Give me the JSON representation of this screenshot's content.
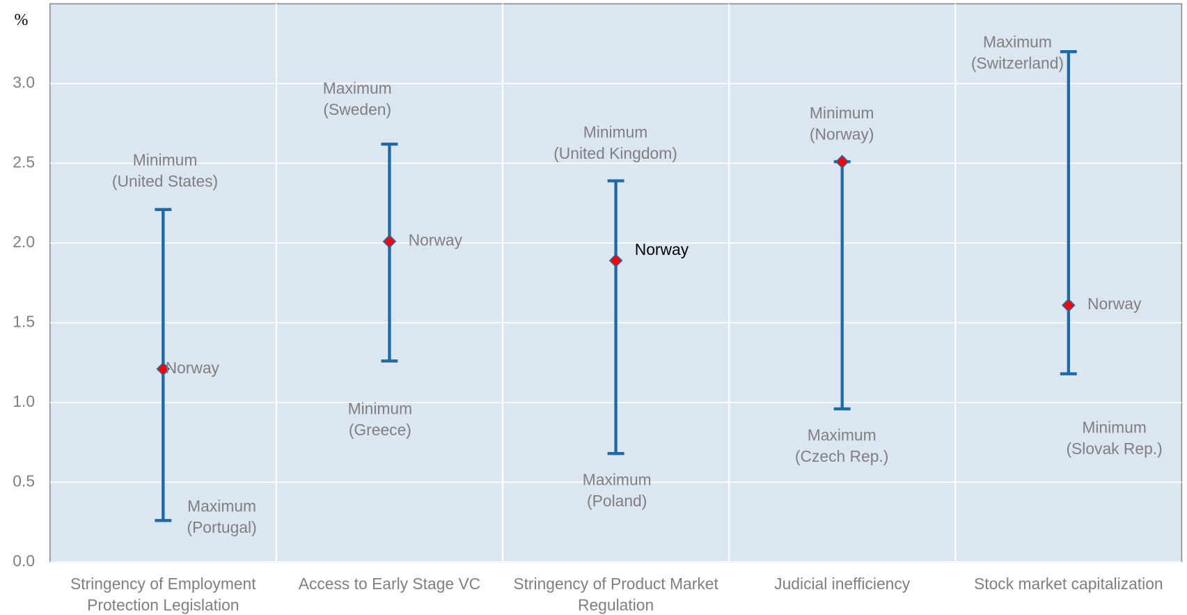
{
  "chart_data": {
    "type": "range",
    "y_label": "%",
    "categories": [
      "Stringency of Employment Protection Legislation",
      "Access to Early Stage VC",
      "Stringency of Product Market Regulation",
      "Judicial inefficiency",
      "Stock market capitalization"
    ],
    "ranges": {
      "color": "#1f6aa5",
      "high": [
        2.21,
        2.62,
        2.39,
        2.51,
        3.2
      ],
      "low": [
        0.26,
        1.26,
        0.68,
        0.96,
        1.18
      ]
    },
    "series": [
      {
        "name": "Norway",
        "color": "#ff0000",
        "values": [
          1.21,
          2.01,
          1.89,
          2.51,
          1.61
        ]
      }
    ],
    "point_labels": [
      "Norway",
      "Norway",
      "Norway",
      null,
      "Norway"
    ],
    "top_labels": [
      [
        "Minimum",
        "(United States)"
      ],
      [
        "Maximum",
        "(Sweden)"
      ],
      [
        "Minimum",
        "(United Kingdom)"
      ],
      [
        "Minimum",
        "(Norway)"
      ],
      [
        "Maximum",
        "(Switzerland)"
      ]
    ],
    "bottom_labels": [
      [
        "Maximum",
        "(Portugal)"
      ],
      [
        "Minimum",
        "(Greece)"
      ],
      [
        "Maximum",
        "(Poland)"
      ],
      [
        "Maximum",
        "(Czech Rep.)"
      ],
      [
        "Minimum",
        "(Slovak Rep.)"
      ]
    ],
    "ylim": [
      0,
      3.5
    ],
    "yticks": [
      {
        "value": 0,
        "label": "0.0"
      },
      {
        "value": 0.5,
        "label": "0.5"
      },
      {
        "value": 1,
        "label": "1.0"
      },
      {
        "value": 1.5,
        "label": "1.5"
      },
      {
        "value": 2,
        "label": "2.0"
      },
      {
        "value": 2.5,
        "label": "2.5"
      },
      {
        "value": 3,
        "label": "3.0"
      }
    ],
    "grid": true
  }
}
